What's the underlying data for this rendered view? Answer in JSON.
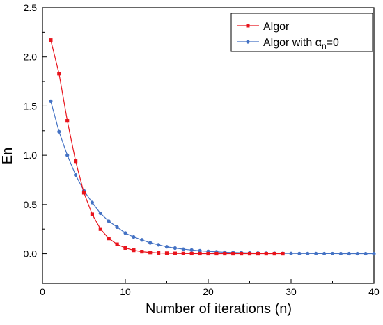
{
  "chart_data": {
    "type": "line",
    "xlabel": "Number of iterations (n)",
    "ylabel": "En",
    "xlim": [
      0,
      40
    ],
    "ylim": [
      -0.3,
      2.5
    ],
    "xticks": [
      0,
      10,
      20,
      30,
      40
    ],
    "yticks": [
      0.0,
      0.5,
      1.0,
      1.5,
      2.0,
      2.5
    ],
    "ytick_labels": [
      "0.0",
      "0.5",
      "1.0",
      "1.5",
      "2.0",
      "2.5"
    ],
    "grid": false,
    "legend_position": "top-right",
    "series": [
      {
        "name": "Algor",
        "color": "#e8141c",
        "marker": "square",
        "x": [
          1,
          2,
          3,
          4,
          5,
          6,
          7,
          8,
          9,
          10,
          11,
          12,
          13,
          14,
          15,
          16,
          17,
          18,
          19,
          20,
          21,
          22,
          23,
          24,
          25,
          26,
          27,
          28,
          29
        ],
        "y": [
          2.17,
          1.83,
          1.35,
          0.94,
          0.62,
          0.4,
          0.25,
          0.155,
          0.095,
          0.058,
          0.035,
          0.021,
          0.013,
          0.008,
          0.005,
          0.003,
          0.002,
          0.001,
          0.0007,
          0.0004,
          0.0003,
          0.0002,
          0.0001,
          0.0001,
          0.0,
          0.0,
          0.0,
          0.0,
          0.0
        ]
      },
      {
        "name": "Algor with αn=0",
        "color": "#4472c4",
        "marker": "circle",
        "x": [
          1,
          2,
          3,
          4,
          5,
          6,
          7,
          8,
          9,
          10,
          11,
          12,
          13,
          14,
          15,
          16,
          17,
          18,
          19,
          20,
          21,
          22,
          23,
          24,
          25,
          26,
          27,
          28,
          29,
          30,
          31,
          32,
          33,
          34,
          35,
          36,
          37,
          38,
          39,
          40
        ],
        "y": [
          1.55,
          1.24,
          1.0,
          0.8,
          0.64,
          0.52,
          0.41,
          0.33,
          0.27,
          0.21,
          0.17,
          0.14,
          0.11,
          0.09,
          0.07,
          0.057,
          0.046,
          0.037,
          0.03,
          0.024,
          0.019,
          0.015,
          0.012,
          0.01,
          0.008,
          0.0065,
          0.005,
          0.004,
          0.0033,
          0.0026,
          0.002,
          0.0017,
          0.0013,
          0.001,
          0.0008,
          0.0007,
          0.0005,
          0.0004,
          0.0003,
          0.0003
        ]
      }
    ]
  },
  "legend": {
    "items": [
      {
        "label": "Algor"
      },
      {
        "label_main": "Algor with α",
        "label_sub": "n",
        "label_tail": "=0"
      }
    ]
  }
}
